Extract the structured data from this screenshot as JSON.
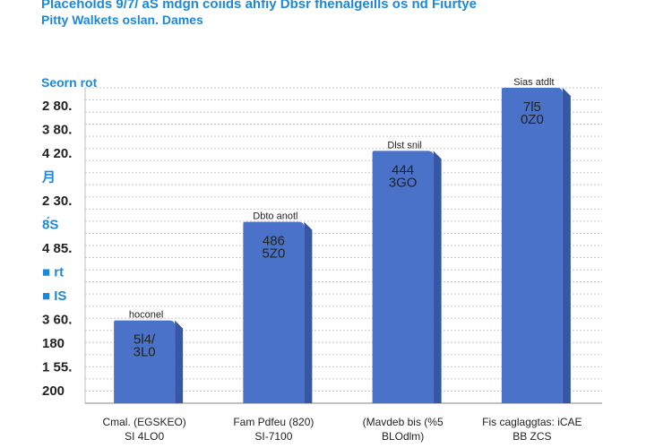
{
  "chart_data": {
    "type": "bar",
    "title": "Placeholds 9/7/ aS mdgn coiids ahfiy Dbsr fhenalgeills os nd Fiurtye",
    "subtitle": "Pitty Walkets oslan. Dames",
    "ylabel": "Seorn rot",
    "y_ticks": [
      {
        "text": "2 80.",
        "color": "#222222"
      },
      {
        "text": "3 80.",
        "color": "#222222"
      },
      {
        "text": "4 20.",
        "color": "#222222"
      },
      {
        "text": "月",
        "color": "#1e88d6"
      },
      {
        "text": "2 30.",
        "color": "#222222"
      },
      {
        "text": "8́S",
        "color": "#1e88d6"
      },
      {
        "text": "4 85.",
        "color": "#222222"
      },
      {
        "text": "■ rt",
        "color": "#1e88d6"
      },
      {
        "text": "■ IS",
        "color": "#1e88d6"
      },
      {
        "text": "3 60.",
        "color": "#222222"
      },
      {
        "text": "180",
        "color": "#222222"
      },
      {
        "text": "1 55.",
        "color": "#222222"
      },
      {
        "text": "200",
        "color": "#222222"
      }
    ],
    "ylim": [
      0,
      800
    ],
    "grid": true,
    "bar_color": "#4a72c8",
    "categories": [
      {
        "line1": "Cmal. (EGSKEO)",
        "line2": "SI 4LO0"
      },
      {
        "line1": "Fam Pdfeu (820)",
        "line2": "SI-7100"
      },
      {
        "line1": "(Mavdeb bis (%5",
        "line2": "BLOdlm)"
      },
      {
        "line1": "Fis caglaggtas: iCAE",
        "line2": "BB ZCS"
      }
    ],
    "values": [
      210,
      460,
      640,
      800
    ],
    "value_labels": [
      {
        "line1": "5l4/",
        "line2": "3L0",
        "note": "hoconel"
      },
      {
        "line1": "486",
        "line2": "5Z0",
        "note": "Dbto anotl"
      },
      {
        "line1": "444",
        "line2": "3GO",
        "note": "Dlst snil"
      },
      {
        "line1": "7l5",
        "line2": "0Z0",
        "note": "Sias atdlt"
      }
    ]
  }
}
